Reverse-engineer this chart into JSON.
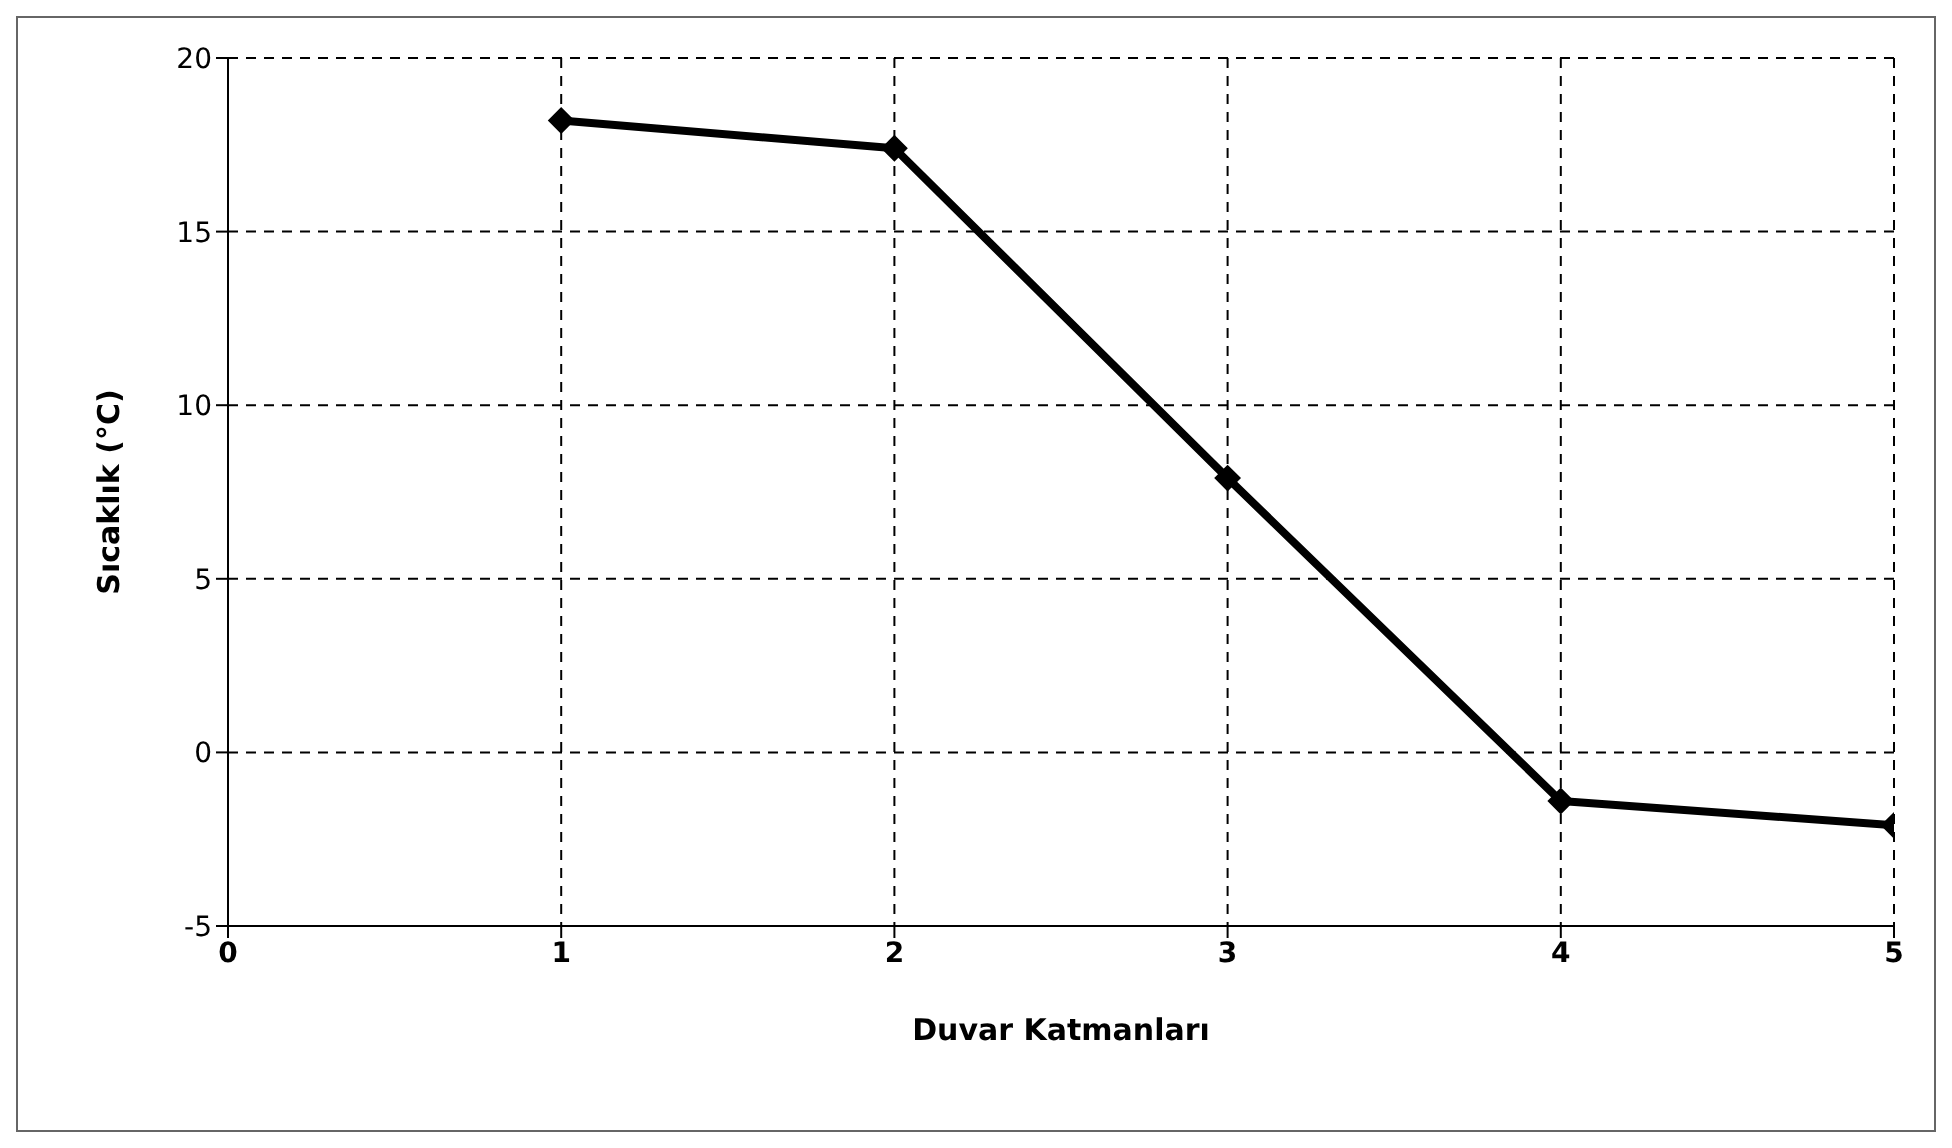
{
  "chart_data": {
    "type": "line",
    "xlabel": "Duvar Katmanları",
    "ylabel": "Sıcaklık  (°C)",
    "x": [
      1,
      2,
      3,
      4,
      5
    ],
    "series": [
      {
        "color": "#000000",
        "values": [
          18.2,
          17.4,
          7.9,
          -1.4,
          -2.1
        ]
      }
    ],
    "xlim": [
      0,
      5
    ],
    "xticks": [
      0,
      1,
      2,
      3,
      4,
      5
    ],
    "ylim": [
      -5,
      20
    ],
    "yticks": [
      -5,
      0,
      5,
      10,
      15,
      20
    ],
    "grid": true,
    "marker": "diamond",
    "line_style": "solid",
    "legend": false
  }
}
